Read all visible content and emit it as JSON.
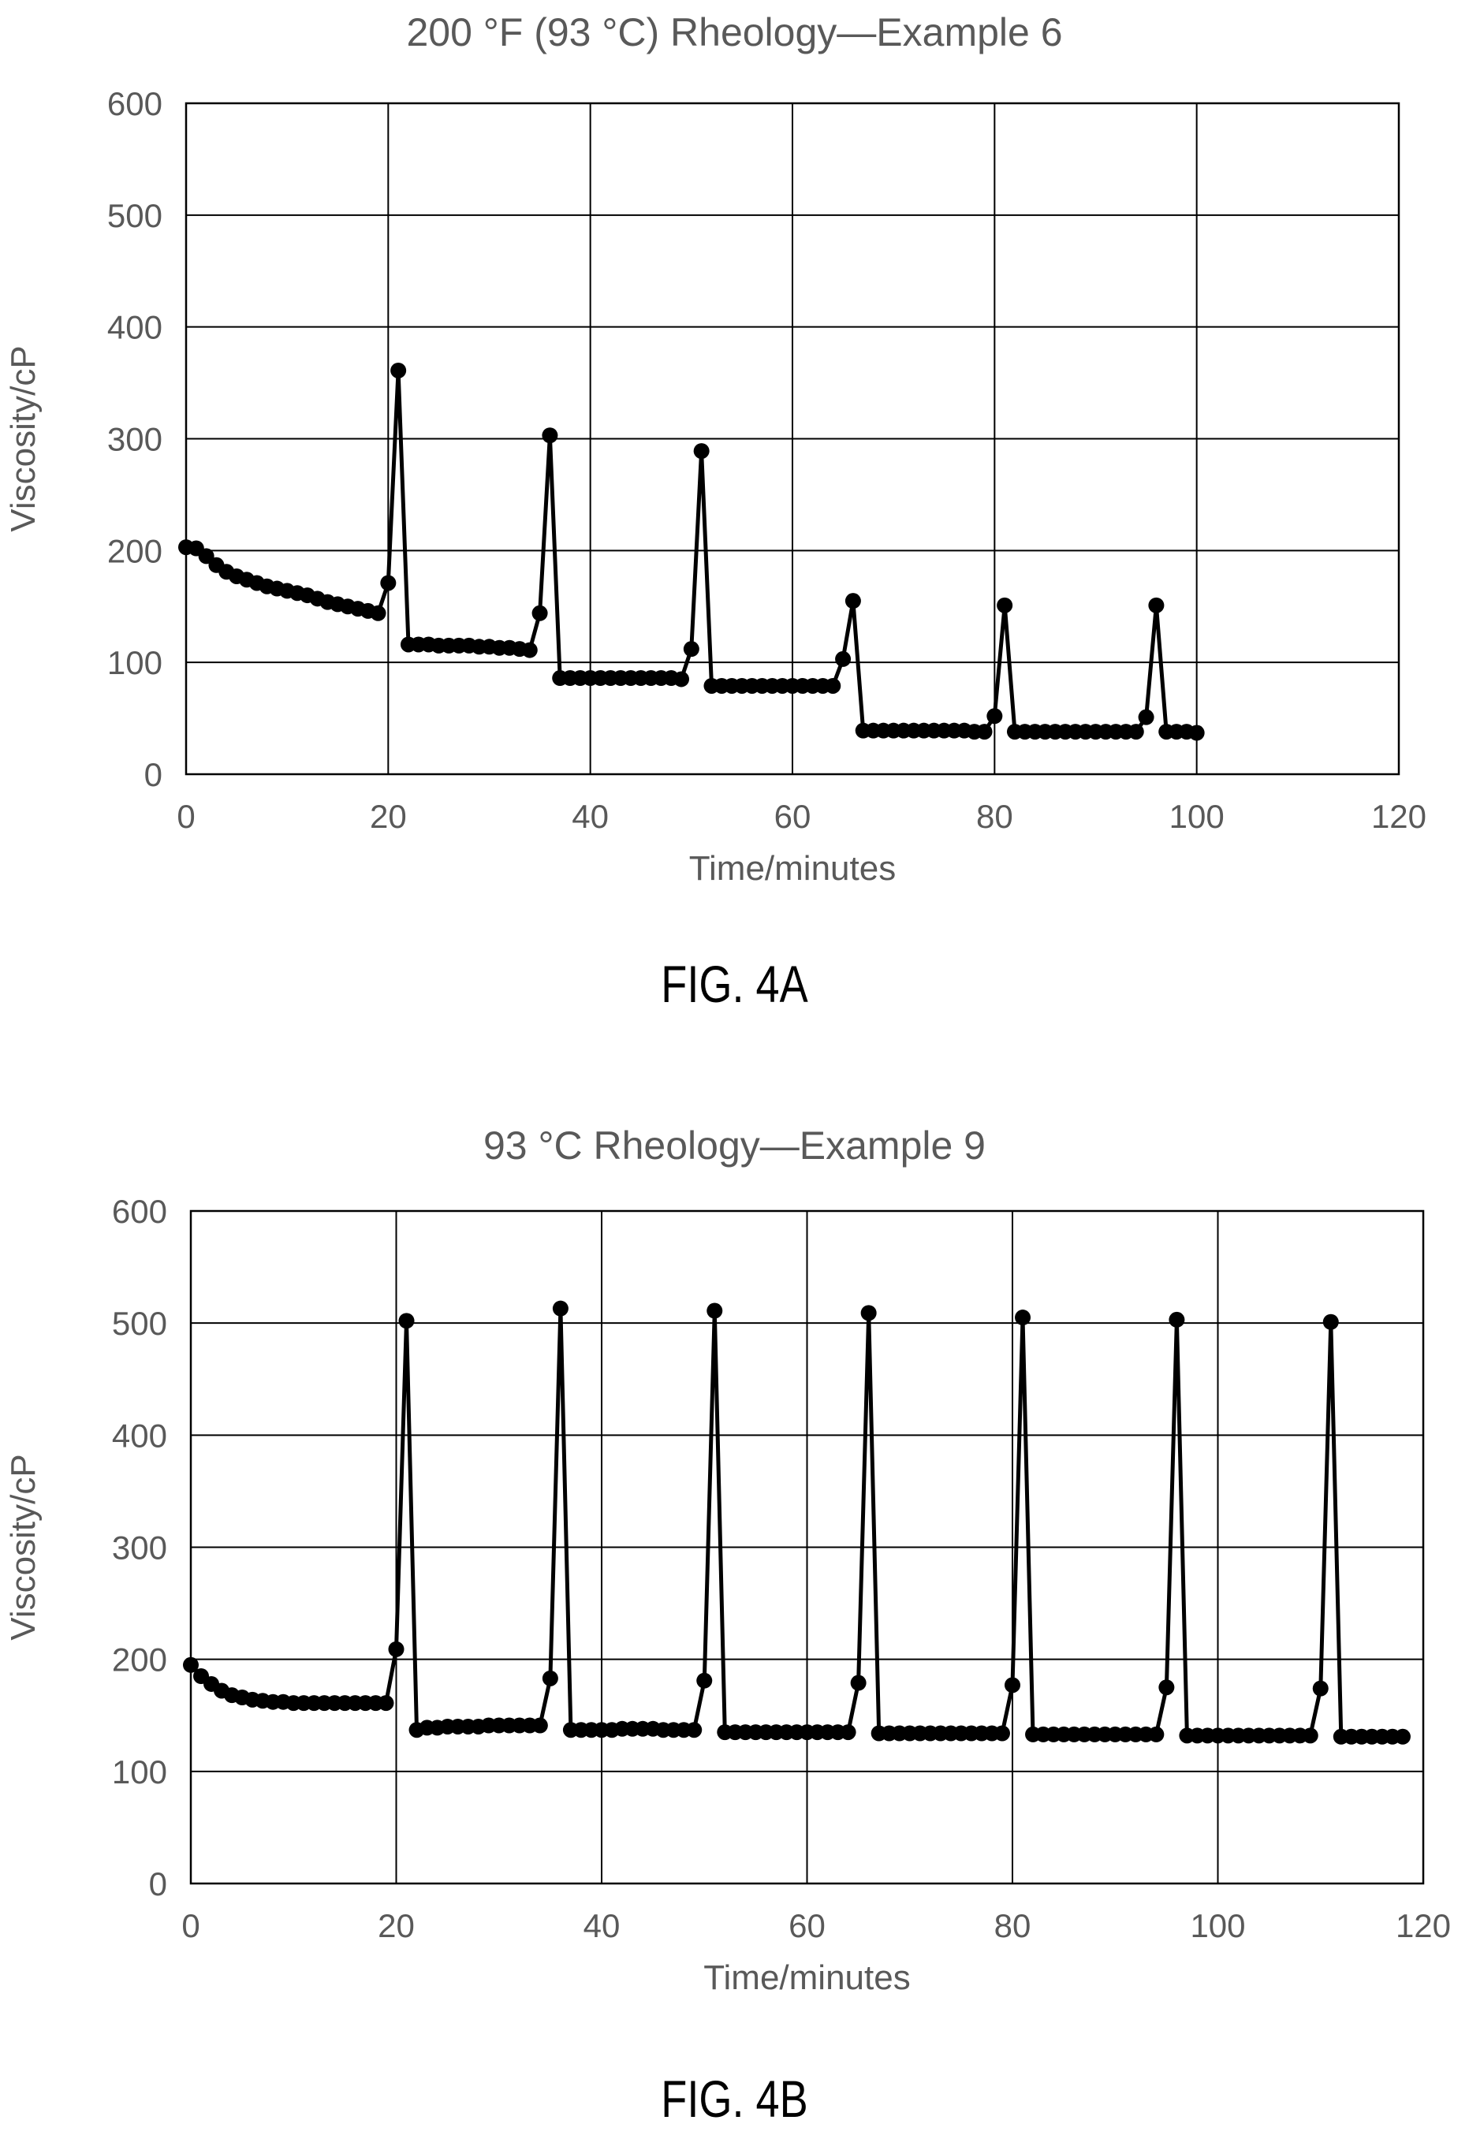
{
  "figures": [
    {
      "caption": "FIG. 4A",
      "chart_data": {
        "type": "line",
        "title": "200 °F (93 °C) Rheology—Example 6",
        "xlabel": "Time/minutes",
        "ylabel": "Viscosity/cP",
        "xlim": [
          0,
          120
        ],
        "ylim": [
          0,
          600
        ],
        "xticks": [
          0,
          20,
          40,
          60,
          80,
          100,
          120
        ],
        "yticks": [
          0,
          100,
          200,
          300,
          400,
          500,
          600
        ],
        "grid": true,
        "marker": "circle",
        "series": [
          {
            "x": [
              0,
              1,
              2,
              3,
              4,
              5,
              6,
              7,
              8,
              9,
              10,
              11,
              12,
              13,
              14,
              15,
              16,
              17,
              18,
              19,
              20,
              21,
              22,
              23,
              24,
              25,
              26,
              27,
              28,
              29,
              30,
              31,
              32,
              33,
              34,
              35,
              36,
              37,
              38,
              39,
              40,
              41,
              42,
              43,
              44,
              45,
              46,
              47,
              48,
              49,
              50,
              51,
              52,
              53,
              54,
              55,
              56,
              57,
              58,
              59,
              60,
              61,
              62,
              63,
              64,
              65,
              66,
              67,
              68,
              69,
              70,
              71,
              72,
              73,
              74,
              75,
              76,
              77,
              78,
              79,
              80,
              81,
              82,
              83,
              84,
              85,
              86,
              87,
              88,
              89,
              90,
              91,
              92,
              93,
              94,
              95,
              96,
              97,
              98,
              99,
              100
            ],
            "y": [
              203,
              202,
              195,
              187,
              181,
              177,
              174,
              171,
              168,
              166,
              164,
              162,
              160,
              157,
              154,
              152,
              150,
              148,
              146,
              144,
              171,
              361,
              116,
              116,
              116,
              115,
              115,
              115,
              115,
              114,
              114,
              113,
              113,
              112,
              111,
              144,
              303,
              86,
              86,
              86,
              86,
              86,
              86,
              86,
              86,
              86,
              86,
              86,
              86,
              85,
              112,
              289,
              79,
              79,
              79,
              79,
              79,
              79,
              79,
              79,
              79,
              79,
              79,
              79,
              79,
              103,
              155,
              39,
              39,
              39,
              39,
              39,
              39,
              39,
              39,
              39,
              39,
              39,
              38,
              38,
              52,
              151,
              38,
              38,
              38,
              38,
              38,
              38,
              38,
              38,
              38,
              38,
              38,
              38,
              38,
              51,
              151,
              38,
              38,
              38,
              37
            ]
          }
        ]
      }
    },
    {
      "caption": "FIG. 4B",
      "chart_data": {
        "type": "line",
        "title": "93 °C Rheology—Example 9",
        "xlabel": "Time/minutes",
        "ylabel": "Viscosity/cP",
        "xlim": [
          0,
          120
        ],
        "ylim": [
          0,
          600
        ],
        "xticks": [
          0,
          20,
          40,
          60,
          80,
          100,
          120
        ],
        "yticks": [
          0,
          100,
          200,
          300,
          400,
          500,
          600
        ],
        "grid": true,
        "marker": "circle",
        "series": [
          {
            "x": [
              0,
              1,
              2,
              3,
              4,
              5,
              6,
              7,
              8,
              9,
              10,
              11,
              12,
              13,
              14,
              15,
              16,
              17,
              18,
              19,
              20,
              21,
              22,
              23,
              24,
              25,
              26,
              27,
              28,
              29,
              30,
              31,
              32,
              33,
              34,
              35,
              36,
              37,
              38,
              39,
              40,
              41,
              42,
              43,
              44,
              45,
              46,
              47,
              48,
              49,
              50,
              51,
              52,
              53,
              54,
              55,
              56,
              57,
              58,
              59,
              60,
              61,
              62,
              63,
              64,
              65,
              66,
              67,
              68,
              69,
              70,
              71,
              72,
              73,
              74,
              75,
              76,
              77,
              78,
              79,
              80,
              81,
              82,
              83,
              84,
              85,
              86,
              87,
              88,
              89,
              90,
              91,
              92,
              93,
              94,
              95,
              96,
              97,
              98,
              99,
              100,
              101,
              102,
              103,
              104,
              105,
              106,
              107,
              108,
              109,
              110,
              111,
              112,
              113,
              114,
              115,
              116,
              117,
              118
            ],
            "y": [
              195,
              185,
              178,
              172,
              168,
              166,
              164,
              163,
              162,
              162,
              161,
              161,
              161,
              161,
              161,
              161,
              161,
              161,
              161,
              161,
              209,
              502,
              137,
              139,
              139,
              140,
              140,
              140,
              140,
              141,
              141,
              141,
              141,
              141,
              141,
              183,
              513,
              137,
              137,
              137,
              137,
              137,
              138,
              138,
              138,
              138,
              137,
              137,
              137,
              137,
              181,
              511,
              135,
              135,
              135,
              135,
              135,
              135,
              135,
              135,
              135,
              135,
              135,
              135,
              135,
              179,
              509,
              134,
              134,
              134,
              134,
              134,
              134,
              134,
              134,
              134,
              134,
              134,
              134,
              134,
              177,
              505,
              133,
              133,
              133,
              133,
              133,
              133,
              133,
              133,
              133,
              133,
              133,
              133,
              133,
              175,
              503,
              132,
              132,
              132,
              132,
              132,
              132,
              132,
              132,
              132,
              132,
              132,
              132,
              132,
              174,
              501,
              131,
              131,
              131,
              131,
              131,
              131,
              131
            ]
          }
        ]
      }
    }
  ]
}
